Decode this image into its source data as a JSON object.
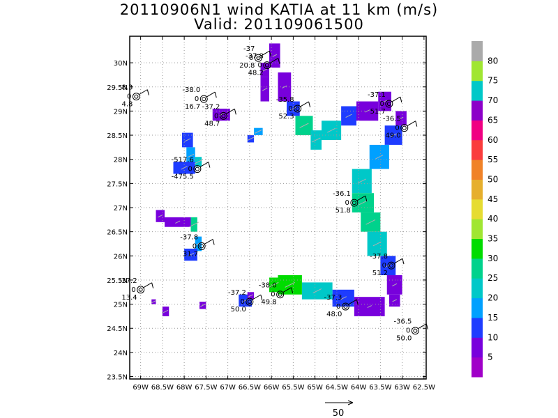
{
  "title": "20110906N1 wind KATIA at 11 km (m/s)",
  "subtitle": "Valid: 201109061500",
  "map": {
    "lon_range": [
      -69.25,
      -62.45
    ],
    "lat_range": [
      23.45,
      30.55
    ],
    "x_ticks": [
      "69W",
      "68.5W",
      "68W",
      "67.5W",
      "67W",
      "66.5W",
      "66W",
      "65.5W",
      "65W",
      "64.5W",
      "64W",
      "63.5W",
      "63W",
      "62.5W"
    ],
    "y_ticks": [
      "23.5N",
      "24N",
      "24.5N",
      "25N",
      "25.5N",
      "26N",
      "26.5N",
      "27N",
      "27.5N",
      "28N",
      "28.5N",
      "29N",
      "29.5N",
      "30N"
    ],
    "grid": "dotted"
  },
  "colorbar": {
    "labels": [
      "5",
      "10",
      "15",
      "20",
      "25",
      "30",
      "35",
      "40",
      "45",
      "50",
      "55",
      "60",
      "65",
      "70",
      "75",
      "80"
    ],
    "colors": [
      "#a000c8",
      "#7800dc",
      "#1e3cff",
      "#00a0ff",
      "#00c8c8",
      "#00d28c",
      "#00dc00",
      "#a0e632",
      "#e6dc32",
      "#e6af2d",
      "#f08228",
      "#fa3c3c",
      "#f00082",
      "#8c00c8",
      "#00c8c8",
      "#a0e632",
      "#aaaaaa"
    ]
  },
  "reference_vector": {
    "label": "50"
  },
  "stations": [
    {
      "lon": -66.3,
      "lat": 30.1,
      "temp": "-37",
      "cld": "0",
      "val": "20.8"
    },
    {
      "lon": -66.1,
      "lat": 29.95,
      "temp": "-37.8",
      "cld": "0",
      "val": "48.2"
    },
    {
      "lon": -67.55,
      "lat": 29.25,
      "temp": "-38.0",
      "cld": "0",
      "val": "16.7"
    },
    {
      "lon": -69.1,
      "lat": 29.3,
      "temp": "8.3",
      "cld": "0",
      "val": "4.8"
    },
    {
      "lon": -67.1,
      "lat": 28.9,
      "temp": "-37.2",
      "cld": "0",
      "val": "48.7"
    },
    {
      "lon": -65.4,
      "lat": 29.05,
      "temp": "-35.8",
      "cld": "0",
      "val": "52.3"
    },
    {
      "lon": -63.3,
      "lat": 29.15,
      "temp": "-37.1",
      "cld": "0",
      "val": "51.7"
    },
    {
      "lon": -62.95,
      "lat": 28.65,
      "temp": "-36.5",
      "cld": "0",
      "val": "49.0"
    },
    {
      "lon": -67.7,
      "lat": 27.8,
      "temp": "-517.6",
      "cld": "0",
      "val": "-475.5"
    },
    {
      "lon": -64.1,
      "lat": 27.1,
      "temp": "-36.1",
      "cld": "0",
      "val": "51.8"
    },
    {
      "lon": -67.6,
      "lat": 26.2,
      "temp": "-37.8",
      "cld": "0",
      "val": "31.7"
    },
    {
      "lon": -63.25,
      "lat": 25.8,
      "temp": "-37.8",
      "cld": "0",
      "val": "51.2"
    },
    {
      "lon": -69.0,
      "lat": 25.3,
      "temp": "-37.2",
      "cld": "0",
      "val": "13.4"
    },
    {
      "lon": -65.8,
      "lat": 25.2,
      "temp": "-38.0",
      "cld": "0",
      "val": "49.8"
    },
    {
      "lon": -66.5,
      "lat": 25.05,
      "temp": "-37.2",
      "cld": "0",
      "val": "50.0"
    },
    {
      "lon": -64.3,
      "lat": 24.95,
      "temp": "-37.3",
      "cld": "0",
      "val": "48.0"
    },
    {
      "lon": -62.7,
      "lat": 24.45,
      "temp": "-36.5",
      "cld": "0",
      "val": "50.0"
    }
  ],
  "wind_cells": [
    {
      "lon0": -66.25,
      "lon1": -66.05,
      "lat0": 29.7,
      "lat1": 30.0,
      "v": 6
    },
    {
      "lon0": -66.05,
      "lon1": -65.8,
      "lat0": 29.9,
      "lat1": 30.4,
      "v": 6
    },
    {
      "lon0": -66.25,
      "lon1": -66.05,
      "lat0": 29.2,
      "lat1": 29.7,
      "v": 9
    },
    {
      "lon0": -65.85,
      "lon1": -65.55,
      "lat0": 29.2,
      "lat1": 29.8,
      "v": 8
    },
    {
      "lon0": -65.65,
      "lon1": -65.35,
      "lat0": 28.9,
      "lat1": 29.2,
      "v": 12
    },
    {
      "lon0": -65.45,
      "lon1": -65.05,
      "lat0": 28.5,
      "lat1": 28.9,
      "v": 25
    },
    {
      "lon0": -65.1,
      "lon1": -64.85,
      "lat0": 28.2,
      "lat1": 28.6,
      "v": 24
    },
    {
      "lon0": -64.85,
      "lon1": -64.4,
      "lat0": 28.4,
      "lat1": 28.8,
      "v": 22
    },
    {
      "lon0": -64.4,
      "lon1": -64.05,
      "lat0": 28.7,
      "lat1": 29.1,
      "v": 14
    },
    {
      "lon0": -64.05,
      "lon1": -63.55,
      "lat0": 28.8,
      "lat1": 29.2,
      "v": 8
    },
    {
      "lon0": -63.55,
      "lon1": -63.25,
      "lat0": 29.0,
      "lat1": 29.4,
      "v": 6
    },
    {
      "lon0": -63.15,
      "lon1": -62.9,
      "lat0": 28.7,
      "lat1": 29.0,
      "v": 6
    },
    {
      "lon0": -63.4,
      "lon1": -63.0,
      "lat0": 28.3,
      "lat1": 28.7,
      "v": 14
    },
    {
      "lon0": -63.75,
      "lon1": -63.3,
      "lat0": 27.8,
      "lat1": 28.3,
      "v": 19
    },
    {
      "lon0": -64.15,
      "lon1": -63.7,
      "lat0": 27.3,
      "lat1": 27.8,
      "v": 22
    },
    {
      "lon0": -64.15,
      "lon1": -63.65,
      "lat0": 26.9,
      "lat1": 27.3,
      "v": 26
    },
    {
      "lon0": -63.95,
      "lon1": -63.5,
      "lat0": 26.5,
      "lat1": 26.9,
      "v": 27
    },
    {
      "lon0": -63.8,
      "lon1": -63.35,
      "lat0": 26.0,
      "lat1": 26.5,
      "v": 22
    },
    {
      "lon0": -63.5,
      "lon1": -63.15,
      "lat0": 25.6,
      "lat1": 26.0,
      "v": 14
    },
    {
      "lon0": -63.35,
      "lon1": -63.0,
      "lat0": 25.2,
      "lat1": 25.6,
      "v": 8
    },
    {
      "lon0": -63.3,
      "lon1": -63.05,
      "lat0": 24.95,
      "lat1": 25.2,
      "v": 6
    },
    {
      "lon0": -64.1,
      "lon1": -63.4,
      "lat0": 24.75,
      "lat1": 25.15,
      "v": 6
    },
    {
      "lon0": -64.6,
      "lon1": -64.1,
      "lat0": 24.95,
      "lat1": 25.3,
      "v": 14
    },
    {
      "lon0": -65.3,
      "lon1": -64.6,
      "lat0": 25.1,
      "lat1": 25.45,
      "v": 23
    },
    {
      "lon0": -65.85,
      "lon1": -65.3,
      "lat0": 25.2,
      "lat1": 25.6,
      "v": 32
    },
    {
      "lon0": -66.05,
      "lon1": -65.85,
      "lat0": 25.25,
      "lat1": 25.55,
      "v": 30
    },
    {
      "lon0": -66.75,
      "lon1": -66.45,
      "lat0": 24.95,
      "lat1": 25.2,
      "v": 14
    },
    {
      "lon0": -68.05,
      "lon1": -67.8,
      "lat0": 28.25,
      "lat1": 28.55,
      "v": 14
    },
    {
      "lon0": -67.95,
      "lon1": -67.75,
      "lat0": 27.9,
      "lat1": 28.25,
      "v": 15
    },
    {
      "lon0": -68.25,
      "lon1": -67.75,
      "lat0": 27.7,
      "lat1": 27.95,
      "v": 14
    },
    {
      "lon0": -67.75,
      "lon1": -67.6,
      "lat0": 27.85,
      "lat1": 28.05,
      "v": 20
    },
    {
      "lon0": -67.35,
      "lon1": -66.95,
      "lat0": 28.8,
      "lat1": 29.05,
      "v": 9
    },
    {
      "lon0": -66.55,
      "lon1": -66.4,
      "lat0": 28.35,
      "lat1": 28.5,
      "v": 14
    },
    {
      "lon0": -66.4,
      "lon1": -66.2,
      "lat0": 28.5,
      "lat1": 28.65,
      "v": 17
    },
    {
      "lon0": -68.65,
      "lon1": -68.45,
      "lat0": 26.7,
      "lat1": 26.95,
      "v": 8
    },
    {
      "lon0": -68.45,
      "lon1": -67.85,
      "lat0": 26.6,
      "lat1": 26.8,
      "v": 8
    },
    {
      "lon0": -67.85,
      "lon1": -67.7,
      "lat0": 26.5,
      "lat1": 26.8,
      "v": 26
    },
    {
      "lon0": -67.75,
      "lon1": -67.6,
      "lat0": 26.1,
      "lat1": 26.4,
      "v": 19
    },
    {
      "lon0": -68.0,
      "lon1": -67.7,
      "lat0": 25.9,
      "lat1": 26.15,
      "v": 14
    },
    {
      "lon0": -68.5,
      "lon1": -68.35,
      "lat0": 24.75,
      "lat1": 24.95,
      "v": 8
    },
    {
      "lon0": -68.75,
      "lon1": -68.65,
      "lat0": 25.0,
      "lat1": 25.1,
      "v": 8
    },
    {
      "lon0": -67.65,
      "lon1": -67.5,
      "lat0": 24.9,
      "lat1": 25.05,
      "v": 8
    },
    {
      "lon0": -66.55,
      "lon1": -66.4,
      "lat0": 25.1,
      "lat1": 25.25,
      "v": 8
    }
  ]
}
